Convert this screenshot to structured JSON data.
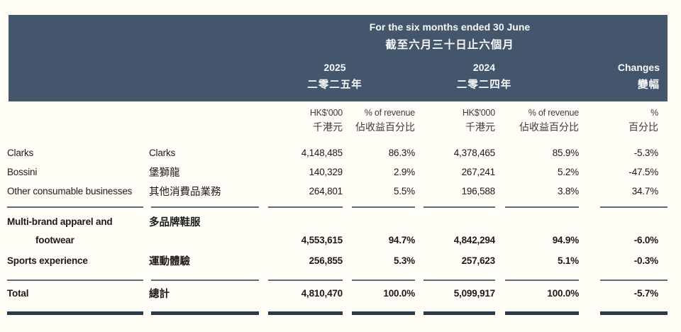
{
  "colors": {
    "header_bg": "#43566b",
    "thin_line": "#5b6b7b",
    "thick_line": "#2a3a4b",
    "page_bg": "#fffdf6",
    "header_text": "#f7f8fa",
    "body_text": "#1b1b1b"
  },
  "header": {
    "title_en": "For the six months ended 30 June",
    "title_zh": "截至六月三十日止六個月",
    "col_2025": {
      "en": "2025",
      "zh": "二零二五年"
    },
    "col_2024": {
      "en": "2024",
      "zh": "二零二四年"
    },
    "col_changes": {
      "en": "Changes",
      "zh": "變幅"
    }
  },
  "subheader": {
    "hk_2025": {
      "en": "HK$'000",
      "zh": "千港元"
    },
    "pct_2025": {
      "en": "% of revenue",
      "zh": "佔收益百分比"
    },
    "hk_2024": {
      "en": "HK$'000",
      "zh": "千港元"
    },
    "pct_2024": {
      "en": "% of revenue",
      "zh": "佔收益百分比"
    },
    "changes": {
      "en": "%",
      "zh": "百分比"
    }
  },
  "rows": [
    {
      "name_en": "Clarks",
      "name_zh": "Clarks",
      "v2025": "4,148,485",
      "p2025": "86.3%",
      "v2024": "4,378,465",
      "p2024": "85.9%",
      "change": "-5.3%"
    },
    {
      "name_en": "Bossini",
      "name_zh": "堡獅龍",
      "v2025": "140,329",
      "p2025": "2.9%",
      "v2024": "267,241",
      "p2024": "5.2%",
      "change": "-47.5%"
    },
    {
      "name_en": "Other consumable businesses",
      "name_zh": "其他消費品業務",
      "v2025": "264,801",
      "p2025": "5.5%",
      "v2024": "196,588",
      "p2024": "3.8%",
      "change": "34.7%"
    }
  ],
  "subtotals": {
    "multibrand": {
      "name_en_line1": "Multi-brand apparel and",
      "name_en_line2": "footwear",
      "name_zh": "多品牌鞋服",
      "v2025": "4,553,615",
      "p2025": "94.7%",
      "v2024": "4,842,294",
      "p2024": "94.9%",
      "change": "-6.0%"
    },
    "sports": {
      "name_en": "Sports experience",
      "name_zh": "運動體驗",
      "v2025": "256,855",
      "p2025": "5.3%",
      "v2024": "257,623",
      "p2024": "5.1%",
      "change": "-0.3%"
    }
  },
  "total": {
    "name_en": "Total",
    "name_zh": "總計",
    "v2025": "4,810,470",
    "p2025": "100.0%",
    "v2024": "5,099,917",
    "p2024": "100.0%",
    "change": "-5.7%"
  }
}
